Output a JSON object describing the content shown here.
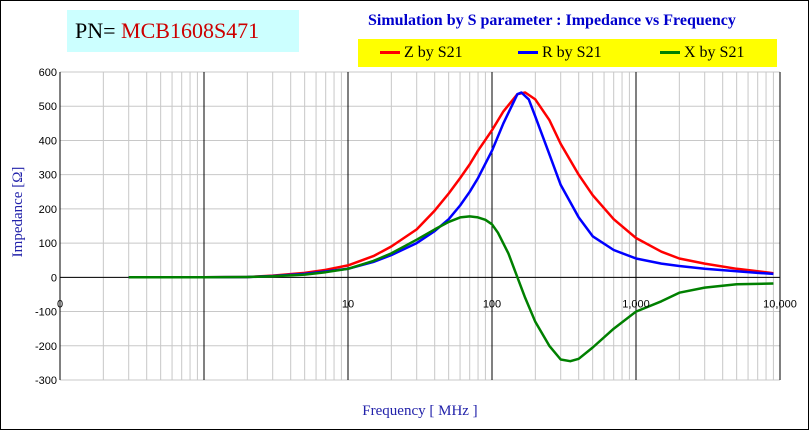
{
  "part_number": {
    "prefix": "PN=",
    "value": "MCB1608S471"
  },
  "chart_data": {
    "type": "line",
    "title": "Simulation by S parameter : Impedance vs Frequency",
    "xlabel": "Frequency [ MHz ]",
    "ylabel": "Impedance [Ω]",
    "x_scale": "log",
    "xlim": [
      0.1,
      10000
    ],
    "ylim": [
      -300,
      600
    ],
    "x_ticks": [
      {
        "value": 0.1,
        "label": "0"
      },
      {
        "value": 10,
        "label": "10"
      },
      {
        "value": 100,
        "label": "100"
      },
      {
        "value": 1000,
        "label": "1,000"
      },
      {
        "value": 10000,
        "label": "10,000"
      }
    ],
    "y_ticks": [
      {
        "value": 600,
        "label": "600"
      },
      {
        "value": 500,
        "label": "500"
      },
      {
        "value": 400,
        "label": "400"
      },
      {
        "value": 300,
        "label": "300"
      },
      {
        "value": 200,
        "label": "200"
      },
      {
        "value": 100,
        "label": "100"
      },
      {
        "value": 0,
        "label": "0"
      },
      {
        "value": -100,
        "label": "-100"
      },
      {
        "value": -200,
        "label": "-200"
      },
      {
        "value": -300,
        "label": "-300"
      }
    ],
    "grid": true,
    "legend_position": "top-right",
    "series": [
      {
        "name": "Z by S21",
        "color": "#ff0000",
        "points": [
          [
            0.3,
            0
          ],
          [
            1,
            0
          ],
          [
            2,
            1
          ],
          [
            3,
            5
          ],
          [
            5,
            13
          ],
          [
            7,
            22
          ],
          [
            10,
            35
          ],
          [
            15,
            62
          ],
          [
            20,
            90
          ],
          [
            30,
            140
          ],
          [
            40,
            195
          ],
          [
            50,
            245
          ],
          [
            60,
            290
          ],
          [
            70,
            330
          ],
          [
            80,
            370
          ],
          [
            100,
            430
          ],
          [
            120,
            485
          ],
          [
            150,
            535
          ],
          [
            170,
            540
          ],
          [
            200,
            520
          ],
          [
            250,
            460
          ],
          [
            300,
            390
          ],
          [
            400,
            300
          ],
          [
            500,
            240
          ],
          [
            700,
            170
          ],
          [
            1000,
            115
          ],
          [
            1500,
            75
          ],
          [
            2000,
            55
          ],
          [
            3000,
            40
          ],
          [
            5000,
            25
          ],
          [
            7000,
            18
          ],
          [
            9000,
            12
          ]
        ]
      },
      {
        "name": "R by S21",
        "color": "#0000ff",
        "points": [
          [
            0.3,
            0
          ],
          [
            1,
            0
          ],
          [
            2,
            1
          ],
          [
            3,
            4
          ],
          [
            5,
            10
          ],
          [
            7,
            17
          ],
          [
            10,
            25
          ],
          [
            15,
            45
          ],
          [
            20,
            65
          ],
          [
            30,
            100
          ],
          [
            40,
            135
          ],
          [
            50,
            170
          ],
          [
            60,
            210
          ],
          [
            70,
            250
          ],
          [
            80,
            290
          ],
          [
            100,
            370
          ],
          [
            120,
            450
          ],
          [
            150,
            535
          ],
          [
            160,
            540
          ],
          [
            180,
            520
          ],
          [
            200,
            470
          ],
          [
            250,
            360
          ],
          [
            300,
            270
          ],
          [
            400,
            175
          ],
          [
            500,
            120
          ],
          [
            700,
            80
          ],
          [
            1000,
            55
          ],
          [
            1500,
            40
          ],
          [
            2000,
            33
          ],
          [
            3000,
            25
          ],
          [
            5000,
            18
          ],
          [
            7000,
            13
          ],
          [
            9000,
            10
          ]
        ]
      },
      {
        "name": "X by S21",
        "color": "#008000",
        "points": [
          [
            0.3,
            0
          ],
          [
            1,
            0
          ],
          [
            2,
            1
          ],
          [
            3,
            3
          ],
          [
            5,
            8
          ],
          [
            7,
            15
          ],
          [
            10,
            25
          ],
          [
            15,
            48
          ],
          [
            20,
            70
          ],
          [
            30,
            110
          ],
          [
            40,
            140
          ],
          [
            50,
            162
          ],
          [
            60,
            175
          ],
          [
            70,
            178
          ],
          [
            80,
            175
          ],
          [
            90,
            168
          ],
          [
            100,
            155
          ],
          [
            110,
            130
          ],
          [
            130,
            70
          ],
          [
            150,
            0
          ],
          [
            170,
            -60
          ],
          [
            200,
            -130
          ],
          [
            250,
            -200
          ],
          [
            300,
            -240
          ],
          [
            350,
            -245
          ],
          [
            400,
            -238
          ],
          [
            500,
            -205
          ],
          [
            700,
            -150
          ],
          [
            1000,
            -100
          ],
          [
            1500,
            -70
          ],
          [
            2000,
            -45
          ],
          [
            3000,
            -30
          ],
          [
            5000,
            -20
          ],
          [
            9000,
            -18
          ]
        ]
      }
    ]
  }
}
